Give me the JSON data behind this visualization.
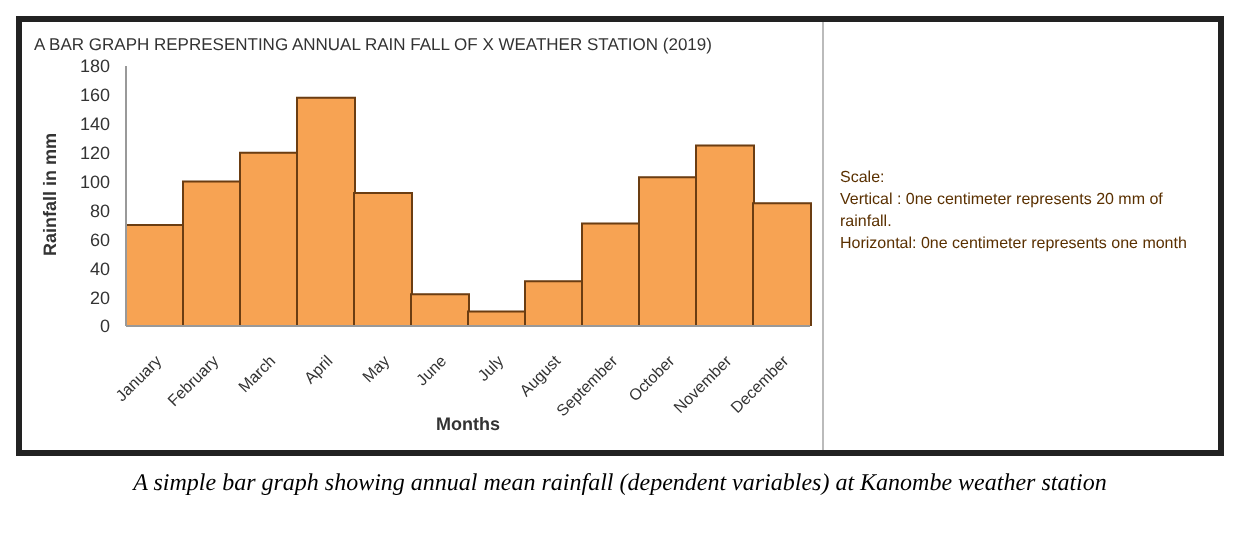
{
  "chart_data": {
    "type": "bar",
    "title": "A BAR GRAPH REPRESENTING ANNUAL RAIN FALL OF X WEATHER STATION (2019)",
    "xlabel": "Months",
    "ylabel": "Rainfall in mm",
    "categories": [
      "January",
      "February",
      "March",
      "April",
      "May",
      "June",
      "July",
      "August",
      "September",
      "October",
      "November",
      "December"
    ],
    "values": [
      70,
      100,
      120,
      158,
      92,
      22,
      10,
      31,
      71,
      103,
      125,
      85
    ],
    "color": "#f7a353",
    "ylim": [
      0,
      180
    ],
    "yticks": [
      0,
      20,
      40,
      60,
      80,
      100,
      120,
      140,
      160,
      180
    ],
    "grid": false,
    "annotations": [
      "Scale:",
      "Vertical : 0ne centimeter represents 20 mm of rainfall.",
      "Horizontal: 0ne centimeter represents one month",
      "A simple bar graph showing annual mean rainfall (dependent variables) at Kanombe weather station"
    ]
  }
}
